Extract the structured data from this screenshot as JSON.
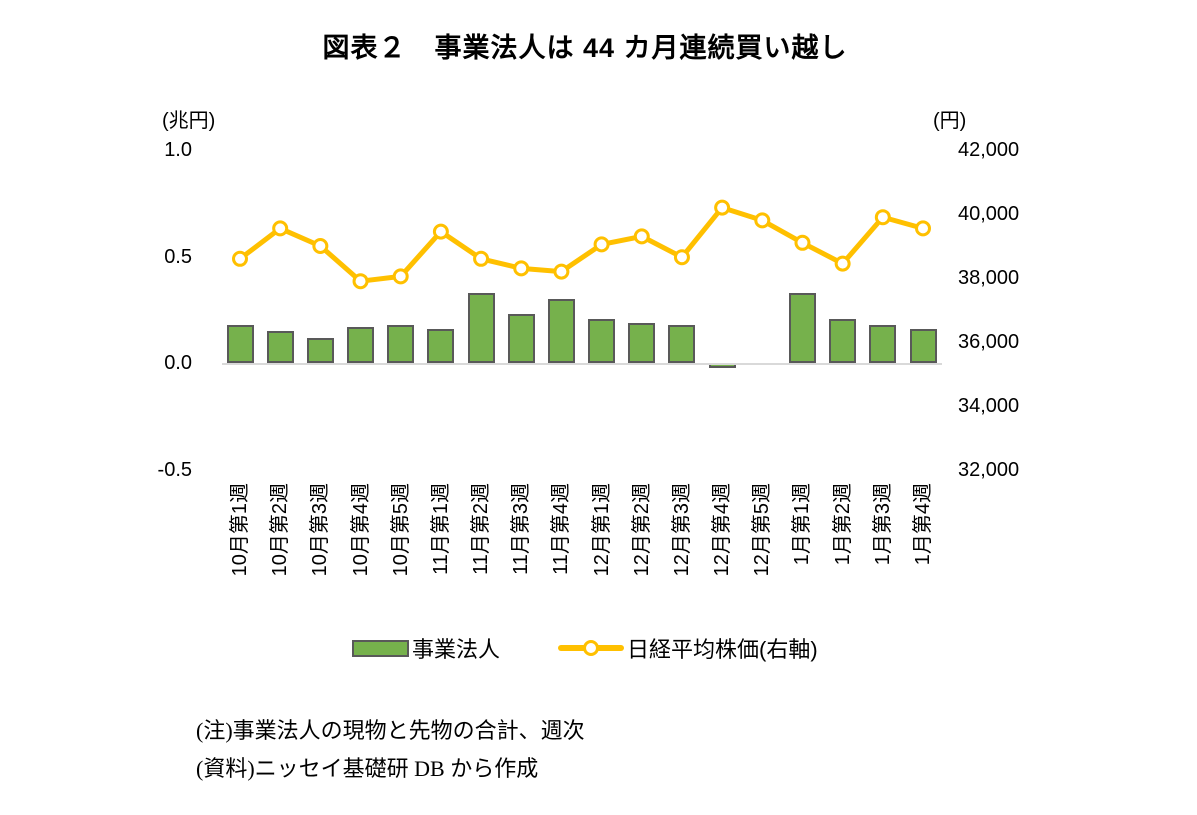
{
  "title": "図表２　事業法人は 44 カ月連続買い越し",
  "left_axis": {
    "unit": "(兆円)",
    "ticks": [
      1.0,
      0.5,
      0.0,
      -0.5
    ],
    "tick_labels": [
      "1.0",
      "0.5",
      "0.0",
      "-0.5"
    ]
  },
  "right_axis": {
    "unit": "(円)",
    "ticks": [
      42000,
      40000,
      38000,
      36000,
      34000,
      32000
    ],
    "tick_labels": [
      "42,000",
      "40,000",
      "38,000",
      "36,000",
      "34,000",
      "32,000"
    ]
  },
  "legend": {
    "bar_label": "事業法人",
    "line_label": "日経平均株価(右軸)"
  },
  "notes": [
    "(注)事業法人の現物と先物の合計、週次",
    "(資料)ニッセイ基礎研 DB から作成"
  ],
  "colors": {
    "bar_fill": "#76B14C",
    "bar_border": "#595959",
    "line": "#FFC000",
    "marker_fill": "#FFFFFF",
    "axis_line": "#D9D9D9",
    "text": "#000000"
  },
  "chart_data": {
    "type": "bar",
    "subtype": "bar-line-combo",
    "categories": [
      "10月第1週",
      "10月第2週",
      "10月第3週",
      "10月第4週",
      "10月第5週",
      "11月第1週",
      "11月第2週",
      "11月第3週",
      "11月第4週",
      "12月第1週",
      "12月第2週",
      "12月第3週",
      "12月第4週",
      "12月第5週",
      "1月第1週",
      "1月第2週",
      "1月第3週",
      "1月第4週"
    ],
    "series": [
      {
        "name": "事業法人",
        "type": "bar",
        "axis": "left",
        "unit": "兆円",
        "values": [
          0.18,
          0.15,
          0.12,
          0.17,
          0.18,
          0.16,
          0.33,
          0.23,
          0.3,
          0.21,
          0.19,
          0.18,
          -0.02,
          0.0,
          0.33,
          0.21,
          0.18,
          0.16
        ]
      },
      {
        "name": "日経平均株価(右軸)",
        "type": "line",
        "axis": "right",
        "unit": "円",
        "values": [
          38600,
          39550,
          39000,
          37900,
          38050,
          39450,
          38600,
          38300,
          38200,
          39050,
          39300,
          38650,
          40200,
          39800,
          39100,
          38450,
          39900,
          39550
        ]
      }
    ],
    "left_ylim": [
      -0.5,
      1.0
    ],
    "right_ylim": [
      32000,
      42000
    ],
    "grid": false,
    "legend_position": "bottom",
    "title": "図表２　事業法人は 44 カ月連続買い越し",
    "xlabel": "",
    "ylabel_left": "(兆円)",
    "ylabel_right": "(円)"
  }
}
